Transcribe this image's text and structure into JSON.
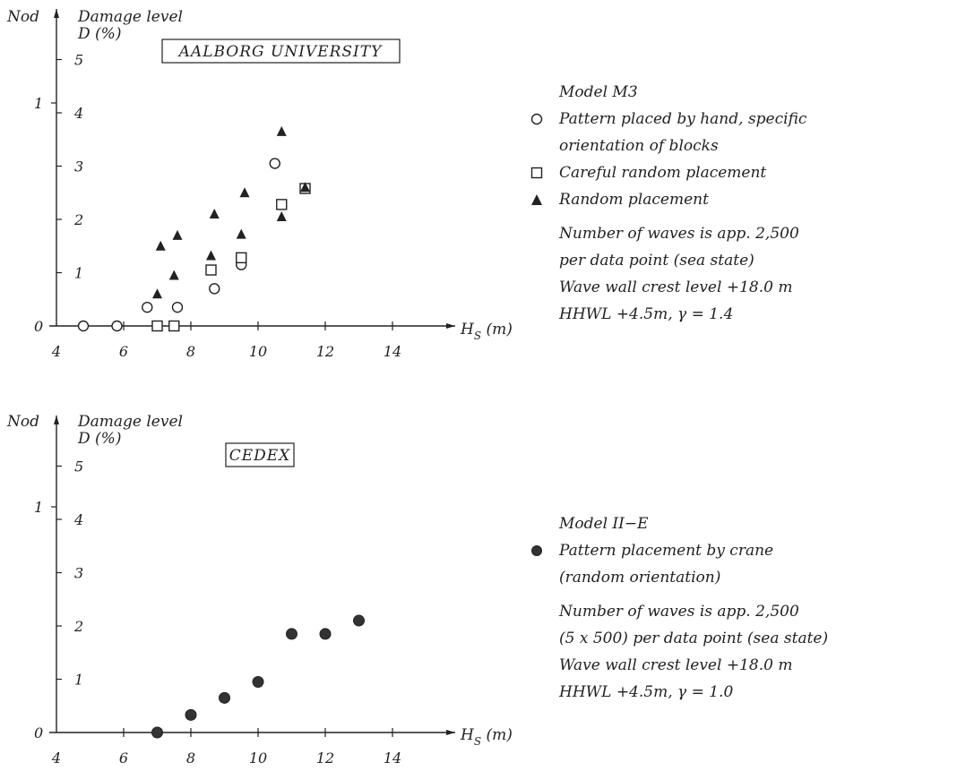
{
  "chart_data": [
    {
      "type": "scatter",
      "title": "AALBORG UNIVERSITY",
      "xlabel": "H_s (m)",
      "ylabel_left": "Nod",
      "ylabel_right": "Damage level D (%)",
      "xlim": [
        4,
        15.5
      ],
      "xticks": [
        "4",
        "6",
        "8",
        "10",
        "12",
        "14"
      ],
      "nod_ticks": [
        "0",
        "1"
      ],
      "d_ticks": [
        "1",
        "2",
        "3",
        "4",
        "5"
      ],
      "ylim_d": [
        0,
        5.3
      ],
      "series": [
        {
          "name": "Pattern placed by hand, specific orientation of blocks",
          "marker": "circle-open",
          "points": [
            [
              4.8,
              0
            ],
            [
              5.8,
              0
            ],
            [
              6.7,
              0.35
            ],
            [
              7.6,
              0.35
            ],
            [
              8.7,
              0.7
            ],
            [
              9.5,
              1.15
            ],
            [
              10.5,
              3.05
            ]
          ]
        },
        {
          "name": "Careful random placement",
          "marker": "square-open",
          "points": [
            [
              7.0,
              0
            ],
            [
              7.5,
              0
            ],
            [
              8.6,
              1.05
            ],
            [
              9.5,
              1.28
            ],
            [
              10.7,
              2.28
            ],
            [
              11.4,
              2.58
            ]
          ]
        },
        {
          "name": "Random placement",
          "marker": "triangle-filled",
          "points": [
            [
              7.0,
              0.6
            ],
            [
              7.1,
              1.5
            ],
            [
              7.5,
              0.95
            ],
            [
              7.6,
              1.7
            ],
            [
              8.6,
              1.32
            ],
            [
              8.7,
              2.1
            ],
            [
              9.5,
              1.72
            ],
            [
              9.6,
              2.5
            ],
            [
              10.7,
              2.05
            ],
            [
              10.7,
              3.65
            ],
            [
              11.4,
              2.6
            ]
          ]
        }
      ],
      "legend": {
        "model": "Model M3",
        "items": [
          "Pattern placed by hand, specific",
          "orientation of blocks",
          "Careful random placement",
          "Random placement"
        ],
        "notes": [
          "Number of waves is app. 2,500",
          "per data point (sea state)",
          "Wave wall crest level +18.0 m",
          "HHWL +4.5m, γ = 1.4"
        ]
      }
    },
    {
      "type": "scatter",
      "title": "CEDEX",
      "xlabel": "H_s (m)",
      "ylabel_left": "Nod",
      "ylabel_right": "Damage level D (%)",
      "xlim": [
        4,
        15.5
      ],
      "xticks": [
        "4",
        "6",
        "8",
        "10",
        "12",
        "14"
      ],
      "nod_ticks": [
        "0",
        "1"
      ],
      "d_ticks": [
        "1",
        "2",
        "3",
        "4",
        "5"
      ],
      "ylim_d": [
        0,
        5.3
      ],
      "series": [
        {
          "name": "Pattern placement by crane (random orientation)",
          "marker": "circle-filled",
          "points": [
            [
              7.0,
              0
            ],
            [
              8.0,
              0.33
            ],
            [
              9.0,
              0.65
            ],
            [
              10.0,
              0.95
            ],
            [
              11.0,
              1.85
            ],
            [
              12.0,
              1.85
            ],
            [
              13.0,
              2.1
            ]
          ]
        }
      ],
      "legend": {
        "model": "Model II−E",
        "items": [
          "Pattern placement by crane",
          "(random orientation)"
        ],
        "notes": [
          "Number of waves is app. 2,500",
          "(5 x 500) per data point (sea state)",
          "Wave wall crest level +18.0 m",
          "HHWL +4.5m, γ = 1.0"
        ]
      }
    }
  ],
  "colors": {
    "ink": "#222222",
    "filled_marker": "#333333"
  }
}
